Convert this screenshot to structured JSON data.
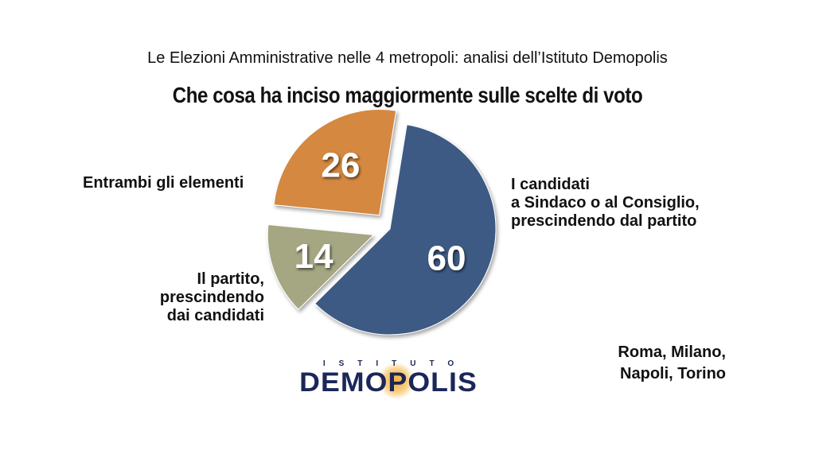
{
  "header": {
    "subtitle": "Le Elezioni Amministrative nelle 4 metropoli: analisi dell’Istituto Demopolis",
    "title": "Che cosa ha inciso maggiormente sulle scelte di voto"
  },
  "chart_data": {
    "type": "pie",
    "title": "Che cosa ha inciso maggiormente sulle scelte di voto",
    "slices": [
      {
        "label": "I candidati a Sindaco o al Consiglio, prescindendo dal partito",
        "value": 60,
        "color": "#3d5a84",
        "exploded": false
      },
      {
        "label": "Il partito, prescindendo dai candidati",
        "value": 14,
        "color": "#a5a682",
        "exploded": true
      },
      {
        "label": "Entrambi gli elementi",
        "value": 26,
        "color": "#d4883f",
        "exploded": true
      }
    ]
  },
  "labels": {
    "both": "Entrambi gli elementi",
    "party": [
      "Il partito,",
      "prescindendo",
      "dai candidati"
    ],
    "candidates": [
      "I candidati",
      "a Sindaco o al Consiglio,",
      "prescindendo dal partito"
    ]
  },
  "footer": {
    "cities": [
      "Roma, Milano,",
      "Napoli, Torino"
    ]
  },
  "logo": {
    "small_text": "ISTITUTO",
    "brand": "DEMOPOLIS"
  }
}
